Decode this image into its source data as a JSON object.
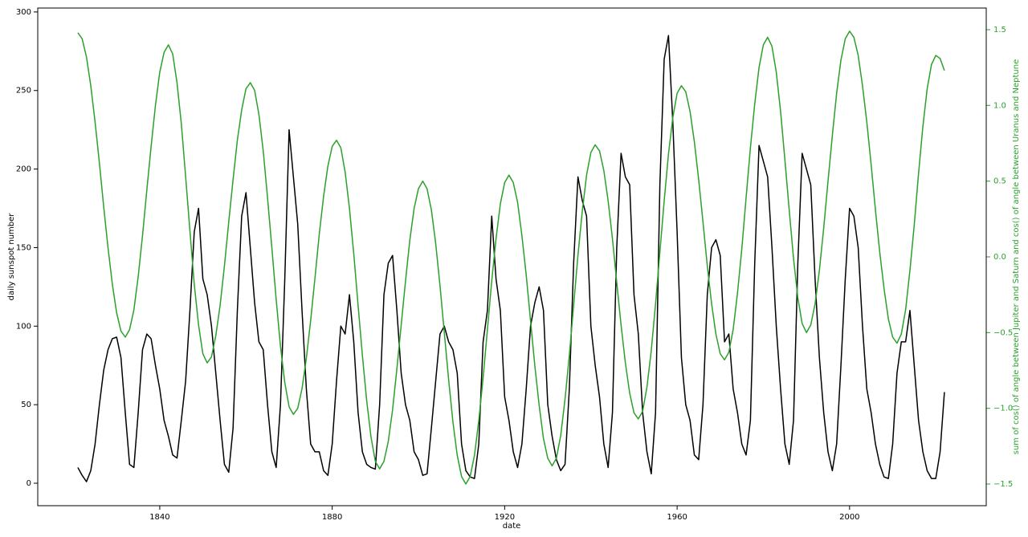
{
  "chart_data": {
    "type": "line",
    "x_label": "date",
    "y_label": "daily sunspot number",
    "y2_label": "sum of cos() of angle between Jupiter and Saturn and cos() of angle between Uranus and Neptune",
    "y2_label_color": "#2ca02c",
    "x": [
      1821,
      1822,
      1823,
      1824,
      1825,
      1826,
      1827,
      1828,
      1829,
      1830,
      1831,
      1832,
      1833,
      1834,
      1835,
      1836,
      1837,
      1838,
      1839,
      1840,
      1841,
      1842,
      1843,
      1844,
      1845,
      1846,
      1847,
      1848,
      1849,
      1850,
      1851,
      1852,
      1853,
      1854,
      1855,
      1856,
      1857,
      1858,
      1859,
      1860,
      1861,
      1862,
      1863,
      1864,
      1865,
      1866,
      1867,
      1868,
      1869,
      1870,
      1871,
      1872,
      1873,
      1874,
      1875,
      1876,
      1877,
      1878,
      1879,
      1880,
      1881,
      1882,
      1883,
      1884,
      1885,
      1886,
      1887,
      1888,
      1889,
      1890,
      1891,
      1892,
      1893,
      1894,
      1895,
      1896,
      1897,
      1898,
      1899,
      1900,
      1901,
      1902,
      1903,
      1904,
      1905,
      1906,
      1907,
      1908,
      1909,
      1910,
      1911,
      1912,
      1913,
      1914,
      1915,
      1916,
      1917,
      1918,
      1919,
      1920,
      1921,
      1922,
      1923,
      1924,
      1925,
      1926,
      1927,
      1928,
      1929,
      1930,
      1931,
      1932,
      1933,
      1934,
      1935,
      1936,
      1937,
      1938,
      1939,
      1940,
      1941,
      1942,
      1943,
      1944,
      1945,
      1946,
      1947,
      1948,
      1949,
      1950,
      1951,
      1952,
      1953,
      1954,
      1955,
      1956,
      1957,
      1958,
      1959,
      1960,
      1961,
      1962,
      1963,
      1964,
      1965,
      1966,
      1967,
      1968,
      1969,
      1970,
      1971,
      1972,
      1973,
      1974,
      1975,
      1976,
      1977,
      1978,
      1979,
      1980,
      1981,
      1982,
      1983,
      1984,
      1985,
      1986,
      1987,
      1988,
      1989,
      1990,
      1991,
      1992,
      1993,
      1994,
      1995,
      1996,
      1997,
      1998,
      1999,
      2000,
      2001,
      2002,
      2003,
      2004,
      2005,
      2006,
      2007,
      2008,
      2009,
      2010,
      2011,
      2012,
      2013,
      2014,
      2015,
      2016,
      2017,
      2018,
      2019,
      2020,
      2021,
      2022
    ],
    "series": [
      {
        "color": "#000000",
        "values": [
          10,
          5,
          1,
          8,
          25,
          50,
          72,
          85,
          92,
          93,
          80,
          45,
          12,
          10,
          45,
          85,
          95,
          92,
          75,
          60,
          40,
          30,
          18,
          16,
          40,
          65,
          110,
          160,
          175,
          130,
          120,
          100,
          70,
          40,
          12,
          7,
          35,
          110,
          170,
          185,
          150,
          115,
          90,
          85,
          50,
          20,
          10,
          50,
          130,
          225,
          195,
          165,
          110,
          60,
          25,
          20,
          20,
          8,
          5,
          25,
          65,
          100,
          95,
          120,
          90,
          45,
          20,
          12,
          10,
          9,
          50,
          120,
          140,
          145,
          110,
          70,
          50,
          40,
          20,
          15,
          5,
          6,
          35,
          65,
          95,
          100,
          90,
          85,
          70,
          25,
          8,
          4,
          3,
          25,
          90,
          110,
          170,
          130,
          110,
          55,
          40,
          20,
          10,
          25,
          60,
          100,
          115,
          125,
          110,
          50,
          30,
          15,
          8,
          12,
          60,
          140,
          195,
          180,
          170,
          100,
          75,
          55,
          25,
          10,
          45,
          150,
          210,
          195,
          190,
          120,
          95,
          45,
          20,
          6,
          45,
          190,
          270,
          285,
          230,
          160,
          80,
          50,
          40,
          18,
          15,
          50,
          120,
          150,
          155,
          145,
          90,
          95,
          60,
          45,
          25,
          18,
          40,
          140,
          215,
          205,
          195,
          150,
          100,
          60,
          25,
          12,
          40,
          140,
          210,
          200,
          190,
          130,
          80,
          45,
          20,
          8,
          25,
          75,
          130,
          175,
          170,
          150,
          100,
          60,
          45,
          25,
          12,
          4,
          3,
          25,
          70,
          90,
          90,
          110,
          75,
          40,
          20,
          8,
          3,
          3,
          20,
          58
        ]
      },
      {
        "color": "#2ca02c",
        "axis": "y2",
        "values": [
          1.48,
          1.44,
          1.32,
          1.13,
          0.89,
          0.62,
          0.33,
          0.06,
          -0.18,
          -0.37,
          -0.49,
          -0.53,
          -0.48,
          -0.35,
          -0.13,
          0.14,
          0.44,
          0.73,
          1.0,
          1.22,
          1.35,
          1.4,
          1.34,
          1.15,
          0.88,
          0.53,
          0.17,
          -0.18,
          -0.45,
          -0.64,
          -0.7,
          -0.66,
          -0.52,
          -0.32,
          -0.06,
          0.23,
          0.51,
          0.77,
          0.97,
          1.11,
          1.15,
          1.1,
          0.94,
          0.7,
          0.39,
          0.06,
          -0.28,
          -0.59,
          -0.83,
          -0.99,
          -1.04,
          -1.0,
          -0.87,
          -0.67,
          -0.42,
          -0.14,
          0.15,
          0.4,
          0.6,
          0.73,
          0.77,
          0.72,
          0.56,
          0.32,
          0.02,
          -0.32,
          -0.65,
          -0.95,
          -1.19,
          -1.35,
          -1.4,
          -1.35,
          -1.22,
          -1.01,
          -0.74,
          -0.45,
          -0.16,
          0.11,
          0.32,
          0.45,
          0.5,
          0.45,
          0.31,
          0.09,
          -0.19,
          -0.5,
          -0.81,
          -1.09,
          -1.31,
          -1.45,
          -1.5,
          -1.45,
          -1.31,
          -1.08,
          -0.8,
          -0.48,
          -0.16,
          0.12,
          0.35,
          0.49,
          0.54,
          0.49,
          0.36,
          0.14,
          -0.12,
          -0.42,
          -0.72,
          -0.98,
          -1.2,
          -1.33,
          -1.38,
          -1.33,
          -1.18,
          -0.94,
          -0.65,
          -0.32,
          0.01,
          0.3,
          0.54,
          0.69,
          0.74,
          0.7,
          0.57,
          0.37,
          0.12,
          -0.17,
          -0.45,
          -0.7,
          -0.9,
          -1.03,
          -1.07,
          -1.02,
          -0.86,
          -0.62,
          -0.31,
          0.03,
          0.37,
          0.68,
          0.92,
          1.08,
          1.13,
          1.09,
          0.96,
          0.76,
          0.51,
          0.23,
          -0.06,
          -0.31,
          -0.51,
          -0.64,
          -0.68,
          -0.63,
          -0.48,
          -0.24,
          0.05,
          0.39,
          0.72,
          1.01,
          1.25,
          1.4,
          1.45,
          1.39,
          1.22,
          0.96,
          0.64,
          0.31,
          -0.01,
          -0.27,
          -0.44,
          -0.5,
          -0.45,
          -0.31,
          -0.09,
          0.19,
          0.5,
          0.8,
          1.08,
          1.3,
          1.44,
          1.49,
          1.45,
          1.33,
          1.13,
          0.89,
          0.61,
          0.31,
          0.03,
          -0.21,
          -0.41,
          -0.53,
          -0.57,
          -0.51,
          -0.35,
          -0.09,
          0.21,
          0.55,
          0.86,
          1.11,
          1.27,
          1.33,
          1.31,
          1.23
        ]
      }
    ],
    "xlim": [
      1811.7,
      2031.7
    ],
    "xticks": [
      1840,
      1880,
      1920,
      1960,
      2000
    ],
    "ylim": [
      -14.3,
      302.5
    ],
    "yticks": [
      0,
      50,
      100,
      150,
      200,
      250,
      300
    ],
    "y2lim": [
      -1.643,
      1.643
    ],
    "y2ticks": [
      {
        "value": -1.5,
        "label": "−1.5"
      },
      {
        "value": -1.0,
        "label": "−1.0"
      },
      {
        "value": -0.5,
        "label": "−0.5"
      },
      {
        "value": 0,
        "label": "0.0"
      },
      {
        "value": 0.5,
        "label": "0.5"
      },
      {
        "value": 1.0,
        "label": "1.0"
      },
      {
        "value": 1.5,
        "label": "1.5"
      }
    ]
  }
}
